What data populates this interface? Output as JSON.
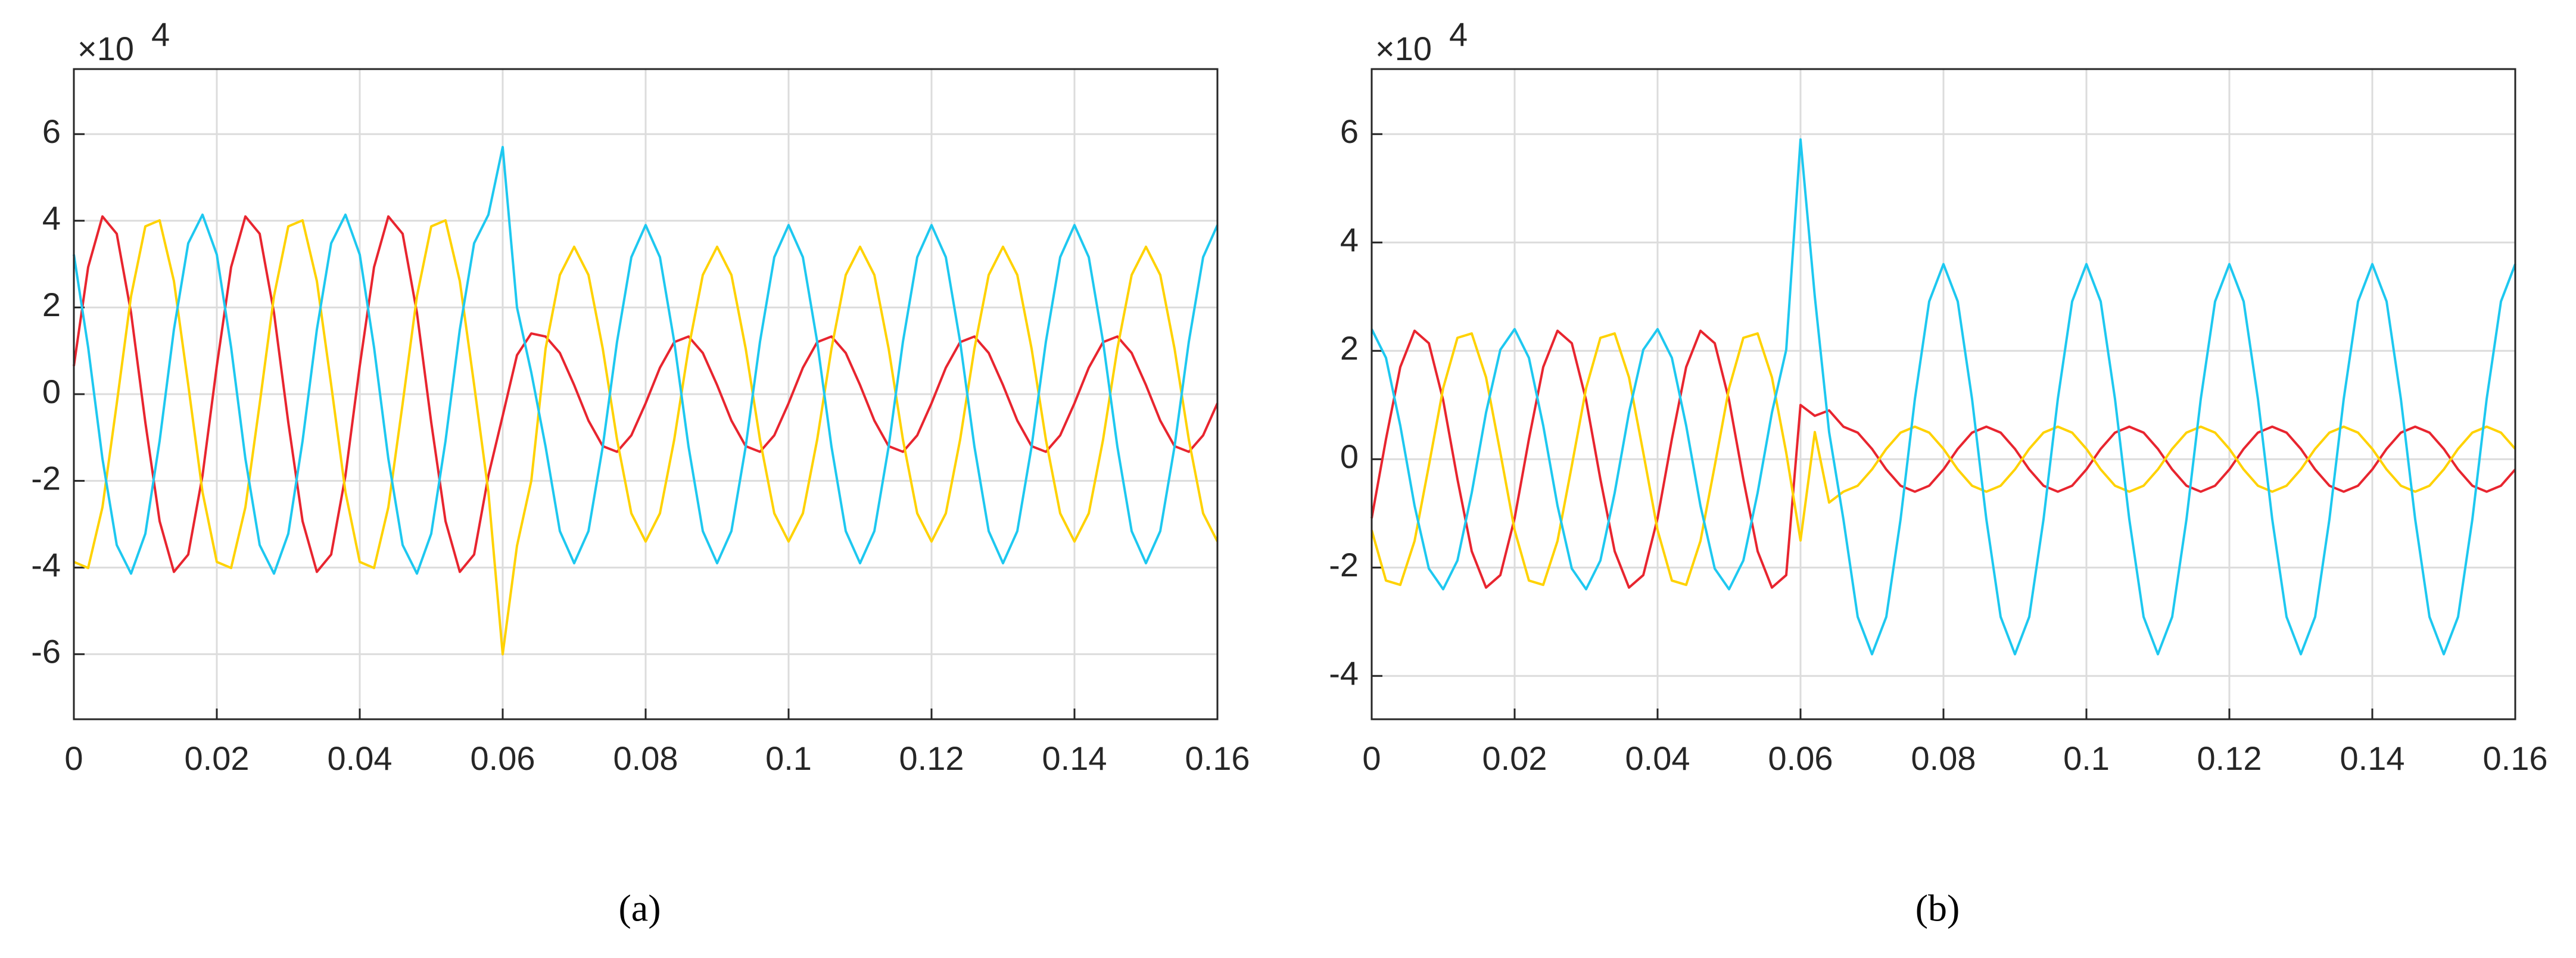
{
  "chart_data": [
    {
      "type": "line",
      "caption": "(a)",
      "y_multiplier": "×10",
      "y_multiplier_exponent": "4",
      "x": [
        0,
        0.002,
        0.004,
        0.006,
        0.008,
        0.01,
        0.012,
        0.014,
        0.016,
        0.018,
        0.02,
        0.022,
        0.024,
        0.026,
        0.028,
        0.03,
        0.032,
        0.034,
        0.036,
        0.038,
        0.04,
        0.042,
        0.044,
        0.046,
        0.048,
        0.05,
        0.052,
        0.054,
        0.056,
        0.058,
        0.06,
        0.062,
        0.064,
        0.066,
        0.068,
        0.07,
        0.072,
        0.074,
        0.076,
        0.078,
        0.08,
        0.082,
        0.084,
        0.086,
        0.088,
        0.09,
        0.092,
        0.094,
        0.096,
        0.098,
        0.1,
        0.102,
        0.104,
        0.106,
        0.108,
        0.11,
        0.112,
        0.114,
        0.116,
        0.118,
        0.12,
        0.122,
        0.124,
        0.126,
        0.128,
        0.13,
        0.132,
        0.134,
        0.136,
        0.138,
        0.14,
        0.142,
        0.144,
        0.146,
        0.148,
        0.15,
        0.152,
        0.154,
        0.156,
        0.158,
        0.16
      ],
      "series": [
        {
          "color": "#e8252f",
          "values": [
            0.65,
            2.93,
            4.1,
            3.7,
            1.88,
            -0.65,
            -2.93,
            -4.1,
            -3.7,
            -1.88,
            0.65,
            2.93,
            4.1,
            3.7,
            1.88,
            -0.65,
            -2.93,
            -4.1,
            -3.7,
            -1.88,
            0.65,
            2.93,
            4.1,
            3.7,
            1.88,
            -0.65,
            -2.93,
            -4.1,
            -3.7,
            -1.88,
            -0.5,
            0.9,
            1.4,
            1.33,
            0.95,
            0.21,
            -0.61,
            -1.2,
            -1.33,
            -0.95,
            -0.21,
            0.61,
            1.2,
            1.33,
            0.95,
            0.21,
            -0.61,
            -1.2,
            -1.33,
            -0.95,
            -0.21,
            0.61,
            1.2,
            1.33,
            0.95,
            0.21,
            -0.61,
            -1.2,
            -1.33,
            -0.95,
            -0.21,
            0.61,
            1.2,
            1.33,
            0.95,
            0.21,
            -0.61,
            -1.2,
            -1.33,
            -0.95,
            -0.21,
            0.61,
            1.2,
            1.33,
            0.95,
            0.21,
            -0.61,
            -1.2,
            -1.33,
            -0.95,
            -0.21
          ]
        },
        {
          "color": "#ffd200",
          "values": [
            -3.87,
            -4.01,
            -2.61,
            -0.22,
            2.26,
            3.87,
            4.01,
            2.61,
            0.22,
            -2.26,
            -3.87,
            -4.01,
            -2.61,
            -0.22,
            2.26,
            3.87,
            4.01,
            2.61,
            0.22,
            -2.26,
            -3.87,
            -4.01,
            -2.61,
            -0.22,
            2.26,
            3.87,
            4.01,
            2.61,
            0.22,
            -2.26,
            -6.0,
            -3.5,
            -2.0,
            1.05,
            2.75,
            3.4,
            2.75,
            1.05,
            -1.05,
            -2.75,
            -3.4,
            -2.75,
            -1.05,
            1.05,
            2.75,
            3.4,
            2.75,
            1.05,
            -1.05,
            -2.75,
            -3.4,
            -2.75,
            -1.05,
            1.05,
            2.75,
            3.4,
            2.75,
            1.05,
            -1.05,
            -2.75,
            -3.4,
            -2.75,
            -1.05,
            1.05,
            2.75,
            3.4,
            2.75,
            1.05,
            -1.05,
            -2.75,
            -3.4,
            -2.75,
            -1.05,
            1.05,
            2.75,
            3.4,
            2.75,
            1.05,
            -1.05,
            -2.75,
            -3.4
          ]
        },
        {
          "color": "#1ec8f0",
          "values": [
            3.22,
            1.08,
            -1.49,
            -3.48,
            -4.14,
            -3.22,
            -1.08,
            1.49,
            3.48,
            4.14,
            3.22,
            1.08,
            -1.49,
            -3.48,
            -4.14,
            -3.22,
            -1.08,
            1.49,
            3.48,
            4.14,
            3.22,
            1.08,
            -1.49,
            -3.48,
            -4.14,
            -3.22,
            -1.08,
            1.49,
            3.48,
            4.14,
            5.7,
            2.0,
            0.5,
            -1.21,
            -3.16,
            -3.9,
            -3.16,
            -1.21,
            1.21,
            3.16,
            3.9,
            3.16,
            1.21,
            -1.21,
            -3.16,
            -3.9,
            -3.16,
            -1.21,
            1.21,
            3.16,
            3.9,
            3.16,
            1.21,
            -1.21,
            -3.16,
            -3.9,
            -3.16,
            -1.21,
            1.21,
            3.16,
            3.9,
            3.16,
            1.21,
            -1.21,
            -3.16,
            -3.9,
            -3.16,
            -1.21,
            1.21,
            3.16,
            3.9,
            3.16,
            1.21,
            -1.21,
            -3.16,
            -3.9,
            -3.16,
            -1.21,
            1.21,
            3.16,
            3.9
          ]
        }
      ],
      "xlim": [
        0,
        0.16
      ],
      "xticks": [
        0,
        0.02,
        0.04,
        0.06,
        0.08,
        0.1,
        0.12,
        0.14,
        0.16
      ],
      "ylim": [
        -7.5,
        7.5
      ],
      "yticks": [
        -6,
        -4,
        -2,
        0,
        2,
        4,
        6
      ],
      "grid": true
    },
    {
      "type": "line",
      "caption": "(b)",
      "y_multiplier": "×10",
      "y_multiplier_exponent": "4",
      "x": [
        0,
        0.002,
        0.004,
        0.006,
        0.008,
        0.01,
        0.012,
        0.014,
        0.016,
        0.018,
        0.02,
        0.022,
        0.024,
        0.026,
        0.028,
        0.03,
        0.032,
        0.034,
        0.036,
        0.038,
        0.04,
        0.042,
        0.044,
        0.046,
        0.048,
        0.05,
        0.052,
        0.054,
        0.056,
        0.058,
        0.06,
        0.062,
        0.064,
        0.066,
        0.068,
        0.07,
        0.072,
        0.074,
        0.076,
        0.078,
        0.08,
        0.082,
        0.084,
        0.086,
        0.088,
        0.09,
        0.092,
        0.094,
        0.096,
        0.098,
        0.1,
        0.102,
        0.104,
        0.106,
        0.108,
        0.11,
        0.112,
        0.114,
        0.116,
        0.118,
        0.12,
        0.122,
        0.124,
        0.126,
        0.128,
        0.13,
        0.132,
        0.134,
        0.136,
        0.138,
        0.14,
        0.142,
        0.144,
        0.146,
        0.148,
        0.15,
        0.152,
        0.154,
        0.156,
        0.158,
        0.16
      ],
      "series": [
        {
          "color": "#e8252f",
          "values": [
            -1.09,
            0.37,
            1.7,
            2.37,
            2.14,
            1.09,
            -0.37,
            -1.7,
            -2.37,
            -2.14,
            -1.09,
            0.37,
            1.7,
            2.37,
            2.14,
            1.09,
            -0.37,
            -1.7,
            -2.37,
            -2.14,
            -1.09,
            0.37,
            1.7,
            2.37,
            2.14,
            1.09,
            -0.37,
            -1.7,
            -2.37,
            -2.14,
            1.0,
            0.8,
            0.9,
            0.6,
            0.49,
            0.19,
            -0.19,
            -0.49,
            -0.6,
            -0.49,
            -0.19,
            0.19,
            0.49,
            0.6,
            0.49,
            0.19,
            -0.19,
            -0.49,
            -0.6,
            -0.49,
            -0.19,
            0.19,
            0.49,
            0.6,
            0.49,
            0.19,
            -0.19,
            -0.49,
            -0.6,
            -0.49,
            -0.19,
            0.19,
            0.49,
            0.6,
            0.49,
            0.19,
            -0.19,
            -0.49,
            -0.6,
            -0.49,
            -0.19,
            0.19,
            0.49,
            0.6,
            0.49,
            0.19,
            -0.19,
            -0.49,
            -0.6,
            -0.49,
            -0.19
          ]
        },
        {
          "color": "#ffd200",
          "values": [
            -1.31,
            -2.24,
            -2.32,
            -1.51,
            -0.12,
            1.31,
            2.24,
            2.32,
            1.51,
            0.12,
            -1.31,
            -2.24,
            -2.32,
            -1.51,
            -0.12,
            1.31,
            2.24,
            2.32,
            1.51,
            0.12,
            -1.31,
            -2.24,
            -2.32,
            -1.51,
            -0.12,
            1.31,
            2.24,
            2.32,
            1.51,
            0.12,
            -1.5,
            0.5,
            -0.8,
            -0.6,
            -0.49,
            -0.19,
            0.19,
            0.49,
            0.6,
            0.49,
            0.19,
            -0.19,
            -0.49,
            -0.6,
            -0.49,
            -0.19,
            0.19,
            0.49,
            0.6,
            0.49,
            0.19,
            -0.19,
            -0.49,
            -0.6,
            -0.49,
            -0.19,
            0.19,
            0.49,
            0.6,
            0.49,
            0.19,
            -0.19,
            -0.49,
            -0.6,
            -0.49,
            -0.19,
            0.19,
            0.49,
            0.6,
            0.49,
            0.19,
            -0.19,
            -0.49,
            -0.6,
            -0.49,
            -0.19,
            0.19,
            0.49,
            0.6,
            0.49,
            0.19
          ]
        },
        {
          "color": "#1ec8f0",
          "values": [
            2.4,
            1.87,
            0.62,
            -0.86,
            -2.02,
            -2.4,
            -1.87,
            -0.62,
            0.86,
            2.02,
            2.4,
            1.87,
            0.62,
            -0.86,
            -2.02,
            -2.4,
            -1.87,
            -0.62,
            0.86,
            2.02,
            2.4,
            1.87,
            0.62,
            -0.86,
            -2.02,
            -2.4,
            -1.87,
            -0.62,
            0.86,
            2.02,
            5.9,
            3.0,
            0.5,
            -1.11,
            -2.91,
            -3.6,
            -2.91,
            -1.11,
            1.11,
            2.91,
            3.6,
            2.91,
            1.11,
            -1.11,
            -2.91,
            -3.6,
            -2.91,
            -1.11,
            1.11,
            2.91,
            3.6,
            2.91,
            1.11,
            -1.11,
            -2.91,
            -3.6,
            -2.91,
            -1.11,
            1.11,
            2.91,
            3.6,
            2.91,
            1.11,
            -1.11,
            -2.91,
            -3.6,
            -2.91,
            -1.11,
            1.11,
            2.91,
            3.6,
            2.91,
            1.11,
            -1.11,
            -2.91,
            -3.6,
            -2.91,
            -1.11,
            1.11,
            2.91,
            3.6
          ]
        }
      ],
      "xlim": [
        0,
        0.16
      ],
      "xticks": [
        0,
        0.02,
        0.04,
        0.06,
        0.08,
        0.1,
        0.12,
        0.14,
        0.16
      ],
      "ylim": [
        -4.8,
        7.2
      ],
      "yticks": [
        -4,
        -2,
        0,
        2,
        4,
        6
      ],
      "grid": true
    }
  ]
}
